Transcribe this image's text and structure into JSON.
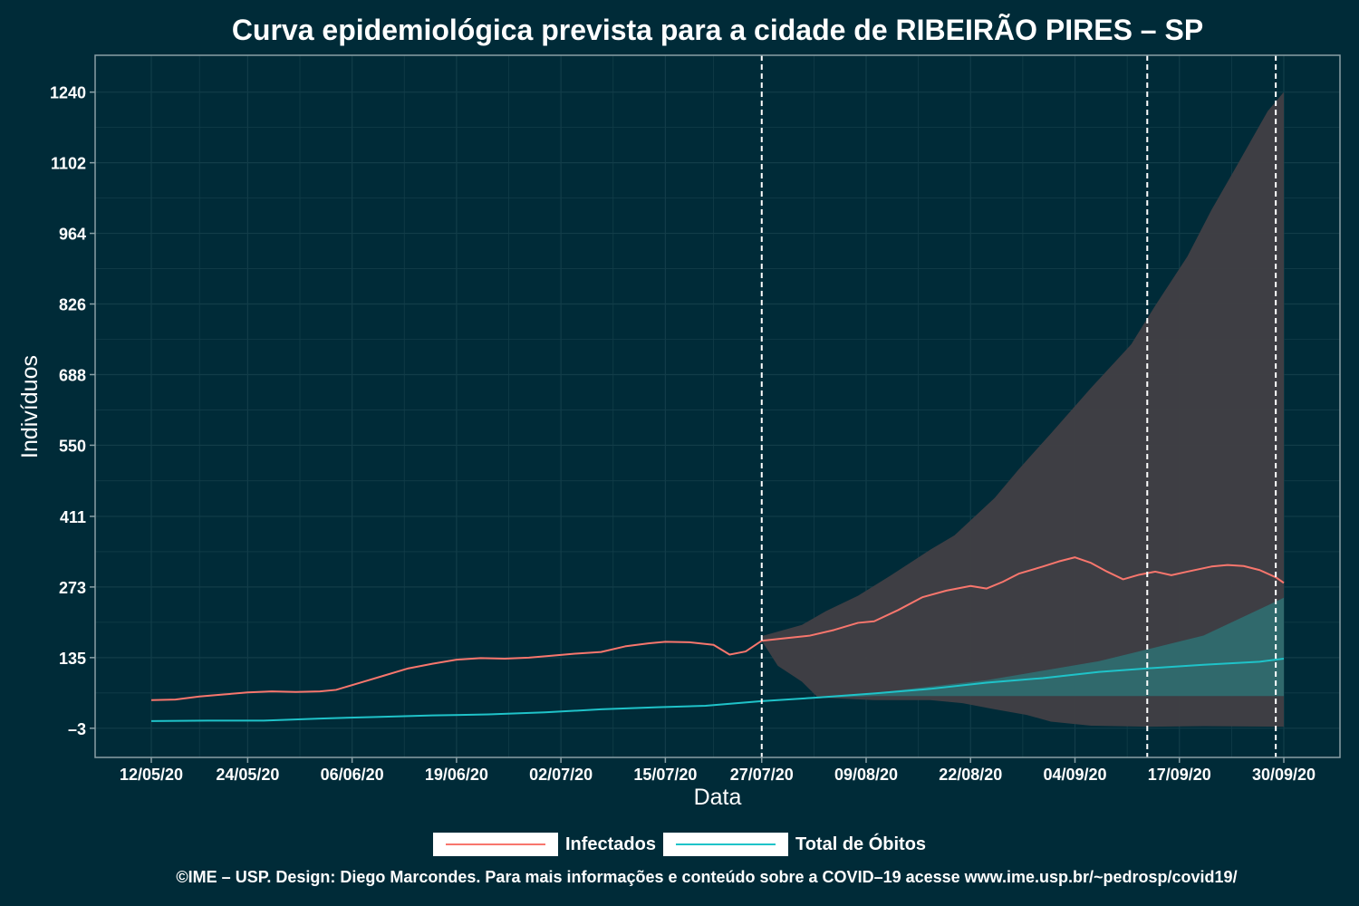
{
  "chart_data": {
    "type": "line",
    "title": "Curva epidemiológica prevista para a cidade de RIBEIRÃO PIRES – SP",
    "xlabel": "Data",
    "ylabel": "Indivíduos",
    "x_start": "2020-05-12",
    "x_end": "2020-09-30",
    "ylim": [
      -60,
      1312
    ],
    "x_ticks": [
      "12/05/20",
      "24/05/20",
      "06/06/20",
      "19/06/20",
      "02/07/20",
      "15/07/20",
      "27/07/20",
      "09/08/20",
      "22/08/20",
      "04/09/20",
      "17/09/20",
      "30/09/20"
    ],
    "y_ticks": [
      -3,
      135,
      273,
      411,
      550,
      688,
      826,
      964,
      1102,
      1240
    ],
    "vlines": [
      "2020-07-27",
      "2020-09-13",
      "2020-09-29"
    ],
    "grid": true,
    "legend_position": "bottom",
    "colors": {
      "background": "#002b38",
      "panel_border": "#8aa0a6",
      "grid": "#123d49",
      "infected": "#f8766d",
      "deaths": "#1fc3c9",
      "band_infected": "#413f45",
      "band_deaths": "#2f6b6f",
      "text": "#ffffff"
    },
    "series": [
      {
        "name": "Infectados",
        "points": [
          [
            "2020-05-12",
            52
          ],
          [
            "2020-05-15",
            53
          ],
          [
            "2020-05-18",
            59
          ],
          [
            "2020-05-21",
            63
          ],
          [
            "2020-05-24",
            67
          ],
          [
            "2020-05-27",
            69
          ],
          [
            "2020-05-30",
            68
          ],
          [
            "2020-06-02",
            69
          ],
          [
            "2020-06-04",
            72
          ],
          [
            "2020-06-07",
            86
          ],
          [
            "2020-06-10",
            100
          ],
          [
            "2020-06-13",
            114
          ],
          [
            "2020-06-16",
            123
          ],
          [
            "2020-06-19",
            131
          ],
          [
            "2020-06-22",
            134
          ],
          [
            "2020-06-25",
            133
          ],
          [
            "2020-06-28",
            135
          ],
          [
            "2020-07-01",
            139
          ],
          [
            "2020-07-04",
            143
          ],
          [
            "2020-07-07",
            146
          ],
          [
            "2020-07-10",
            157
          ],
          [
            "2020-07-13",
            163
          ],
          [
            "2020-07-15",
            166
          ],
          [
            "2020-07-18",
            165
          ],
          [
            "2020-07-21",
            160
          ],
          [
            "2020-07-23",
            141
          ],
          [
            "2020-07-25",
            147
          ],
          [
            "2020-07-27",
            168
          ],
          [
            "2020-07-30",
            173
          ],
          [
            "2020-08-02",
            178
          ],
          [
            "2020-08-05",
            189
          ],
          [
            "2020-08-08",
            203
          ],
          [
            "2020-08-10",
            206
          ],
          [
            "2020-08-13",
            228
          ],
          [
            "2020-08-16",
            253
          ],
          [
            "2020-08-19",
            266
          ],
          [
            "2020-08-22",
            275
          ],
          [
            "2020-08-24",
            270
          ],
          [
            "2020-08-26",
            283
          ],
          [
            "2020-08-28",
            299
          ],
          [
            "2020-08-31",
            313
          ],
          [
            "2020-09-02",
            323
          ],
          [
            "2020-09-04",
            331
          ],
          [
            "2020-09-06",
            320
          ],
          [
            "2020-09-08",
            303
          ],
          [
            "2020-09-10",
            288
          ],
          [
            "2020-09-12",
            297
          ],
          [
            "2020-09-14",
            303
          ],
          [
            "2020-09-16",
            296
          ],
          [
            "2020-09-18",
            303
          ],
          [
            "2020-09-21",
            313
          ],
          [
            "2020-09-23",
            316
          ],
          [
            "2020-09-25",
            314
          ],
          [
            "2020-09-27",
            306
          ],
          [
            "2020-09-29",
            292
          ],
          [
            "2020-09-30",
            281
          ]
        ]
      },
      {
        "name": "Total de Óbitos",
        "points": [
          [
            "2020-05-12",
            11
          ],
          [
            "2020-05-19",
            12
          ],
          [
            "2020-05-26",
            12
          ],
          [
            "2020-06-02",
            16
          ],
          [
            "2020-06-09",
            19
          ],
          [
            "2020-06-16",
            22
          ],
          [
            "2020-06-23",
            24
          ],
          [
            "2020-06-30",
            28
          ],
          [
            "2020-07-07",
            34
          ],
          [
            "2020-07-14",
            38
          ],
          [
            "2020-07-20",
            41
          ],
          [
            "2020-07-27",
            50
          ],
          [
            "2020-08-03",
            57
          ],
          [
            "2020-08-10",
            65
          ],
          [
            "2020-08-17",
            74
          ],
          [
            "2020-08-24",
            86
          ],
          [
            "2020-08-31",
            95
          ],
          [
            "2020-09-07",
            107
          ],
          [
            "2020-09-13",
            114
          ],
          [
            "2020-09-20",
            121
          ],
          [
            "2020-09-27",
            127
          ],
          [
            "2020-09-30",
            133
          ]
        ]
      }
    ],
    "bands": [
      {
        "series": "Infectados",
        "upper": [
          [
            "2020-07-27",
            177
          ],
          [
            "2020-08-01",
            199
          ],
          [
            "2020-08-04",
            226
          ],
          [
            "2020-08-08",
            256
          ],
          [
            "2020-08-12",
            295
          ],
          [
            "2020-08-17",
            346
          ],
          [
            "2020-08-20",
            374
          ],
          [
            "2020-08-25",
            447
          ],
          [
            "2020-08-28",
            503
          ],
          [
            "2020-09-01",
            573
          ],
          [
            "2020-09-06",
            662
          ],
          [
            "2020-09-11",
            747
          ],
          [
            "2020-09-14",
            823
          ],
          [
            "2020-09-18",
            919
          ],
          [
            "2020-09-21",
            1010
          ],
          [
            "2020-09-24",
            1092
          ],
          [
            "2020-09-28",
            1203
          ],
          [
            "2020-09-30",
            1240
          ]
        ],
        "lower": [
          [
            "2020-07-27",
            168
          ],
          [
            "2020-07-29",
            119
          ],
          [
            "2020-08-01",
            88
          ],
          [
            "2020-08-03",
            57
          ],
          [
            "2020-08-10",
            52
          ],
          [
            "2020-08-17",
            52
          ],
          [
            "2020-08-21",
            46
          ],
          [
            "2020-08-25",
            34
          ],
          [
            "2020-08-29",
            23
          ],
          [
            "2020-09-01",
            10
          ],
          [
            "2020-09-06",
            2
          ],
          [
            "2020-09-13",
            0
          ],
          [
            "2020-09-20",
            1
          ],
          [
            "2020-09-30",
            0
          ]
        ]
      },
      {
        "series": "Total de Óbitos",
        "upper": [
          [
            "2020-07-27",
            50
          ],
          [
            "2020-08-10",
            66
          ],
          [
            "2020-08-24",
            91
          ],
          [
            "2020-09-07",
            128
          ],
          [
            "2020-09-20",
            178
          ],
          [
            "2020-09-30",
            252
          ]
        ],
        "lower": [
          [
            "2020-07-27",
            50
          ],
          [
            "2020-08-05",
            57
          ],
          [
            "2020-08-10",
            60
          ],
          [
            "2020-09-30",
            60
          ]
        ]
      }
    ]
  },
  "legend": {
    "items": [
      {
        "label": "Infectados"
      },
      {
        "label": "Total de Óbitos"
      }
    ]
  },
  "footer": "©IME – USP. Design: Diego Marcondes. Para mais informações e conteúdo sobre a COVID–19 acesse www.ime.usp.br/~pedrosp/covid19/"
}
